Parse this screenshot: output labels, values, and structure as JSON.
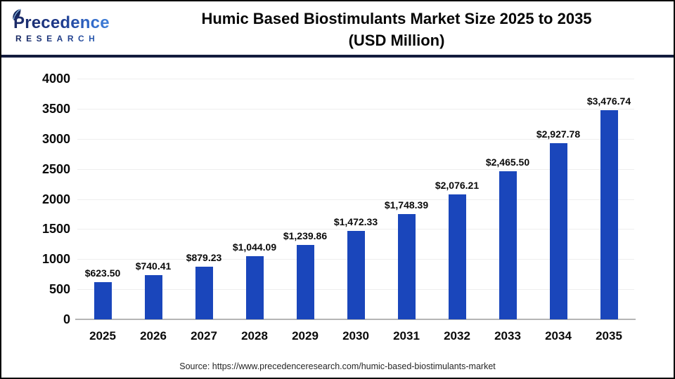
{
  "header": {
    "logo": {
      "name": "Precedence",
      "subtext": "RESEARCH"
    },
    "title_line1": "Humic Based Biostimulants Market Size 2025 to 2035",
    "title_line2": "(USD Million)"
  },
  "chart_data": {
    "type": "bar",
    "title": "Humic Based Biostimulants Market Size 2025 to 2035 (USD Million)",
    "categories": [
      "2025",
      "2026",
      "2027",
      "2028",
      "2029",
      "2030",
      "2031",
      "2032",
      "2033",
      "2034",
      "2035"
    ],
    "values": [
      623.5,
      740.41,
      879.23,
      1044.09,
      1239.86,
      1472.33,
      1748.39,
      2076.21,
      2465.5,
      2927.78,
      3476.74
    ],
    "value_labels": [
      "$623.50",
      "$740.41",
      "$879.23",
      "$1,044.09",
      "$1,239.86",
      "$1,472.33",
      "$1,748.39",
      "$2,076.21",
      "$2,465.50",
      "$2,927.78",
      "$3,476.74"
    ],
    "xlabel": "",
    "ylabel": "",
    "ylim": [
      0,
      4000
    ],
    "yticks": [
      0,
      500,
      1000,
      1500,
      2000,
      2500,
      3000,
      3500,
      4000
    ],
    "grid": true,
    "legend_position": "none",
    "bar_color": "#1a46bb",
    "gridline_color": "#eeeeee",
    "axis_line_color": "#b5b5b5"
  },
  "footer": {
    "source": "Source: https://www.precedenceresearch.com/humic-based-biostimulants-market"
  }
}
